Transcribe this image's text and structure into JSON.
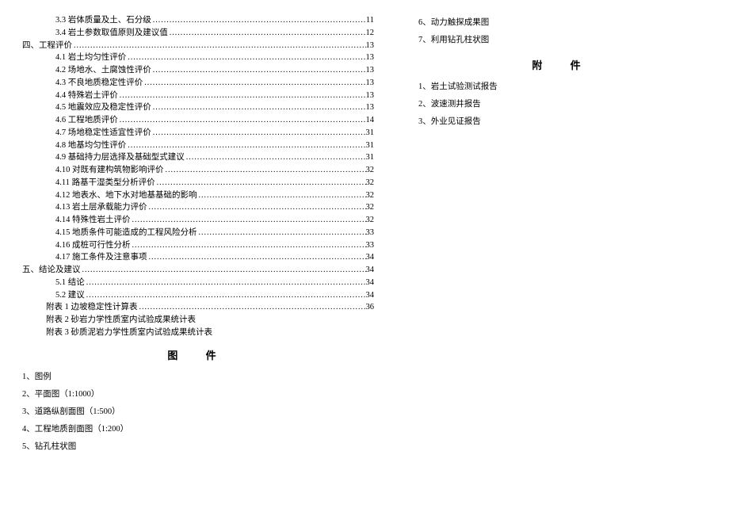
{
  "left_toc": [
    {
      "indent": 2,
      "label": "3.3 岩体质量及土、石分级",
      "page": "11"
    },
    {
      "indent": 2,
      "label": "3.4 岩土参数取值原则及建议值",
      "page": "12"
    },
    {
      "indent": 0,
      "label": "四、工程评价",
      "page": "13"
    },
    {
      "indent": 2,
      "label": "4.1 岩土均匀性评价",
      "page": "13"
    },
    {
      "indent": 2,
      "label": "4.2 场地水、土腐蚀性评价",
      "page": "13"
    },
    {
      "indent": 2,
      "label": "4.3 不良地质稳定性评价",
      "page": "13"
    },
    {
      "indent": 2,
      "label": "4.4 特殊岩土评价",
      "page": "13"
    },
    {
      "indent": 2,
      "label": "4.5 地震效应及稳定性评价",
      "page": "13"
    },
    {
      "indent": 2,
      "label": "4.6 工程地质评价",
      "page": "14"
    },
    {
      "indent": 2,
      "label": "4.7 场地稳定性适宜性评价",
      "page": "31"
    },
    {
      "indent": 2,
      "label": "4.8 地基均匀性评价",
      "page": "31"
    },
    {
      "indent": 2,
      "label": "4.9 基础持力层选择及基础型式建议",
      "page": "31"
    },
    {
      "indent": 2,
      "label": "4.10 对既有建构筑物影响评价",
      "page": "32"
    },
    {
      "indent": 2,
      "label": "4.11 路基干湿类型分析评价",
      "page": "32"
    },
    {
      "indent": 2,
      "label": "4.12 地表水、地下水对地基基础的影响",
      "page": "32"
    },
    {
      "indent": 2,
      "label": "4.13 岩土层承载能力评价",
      "page": "32"
    },
    {
      "indent": 2,
      "label": "4.14 特殊性岩土评价",
      "page": "32"
    },
    {
      "indent": 2,
      "label": "4.15 地质条件可能造成的工程风险分析",
      "page": "33"
    },
    {
      "indent": 2,
      "label": "4.16 成桩可行性分析",
      "page": "33"
    },
    {
      "indent": 2,
      "label": "4.17 施工条件及注意事项",
      "page": "34"
    },
    {
      "indent": 0,
      "label": "五、结论及建议",
      "page": "34"
    },
    {
      "indent": 2,
      "label": "5.1 结论",
      "page": "34"
    },
    {
      "indent": 2,
      "label": "5.2 建议",
      "page": "34"
    },
    {
      "indent": 1,
      "label": "附表 1 边坡稳定性计算表",
      "page": "36"
    }
  ],
  "left_plain": [
    "附表 2 砂岩力学性质室内试验成果统计表",
    "附表 3 砂质泥岩力学性质室内试验成果统计表"
  ],
  "tujian_title": "图  件",
  "tujian_items": [
    "1、图例",
    "2、平面图（1:1000）",
    "3、道路纵剖面图（1:500）",
    "4、工程地质剖面图（1:200）",
    "5、钻孔柱状图"
  ],
  "right_top": [
    "6、动力触探成果图",
    "7、利用钻孔柱状图"
  ],
  "fujian_title": "附  件",
  "fujian_items": [
    "1、岩土试验测试报告",
    "2、波速测井报告",
    "3、外业见证报告"
  ]
}
